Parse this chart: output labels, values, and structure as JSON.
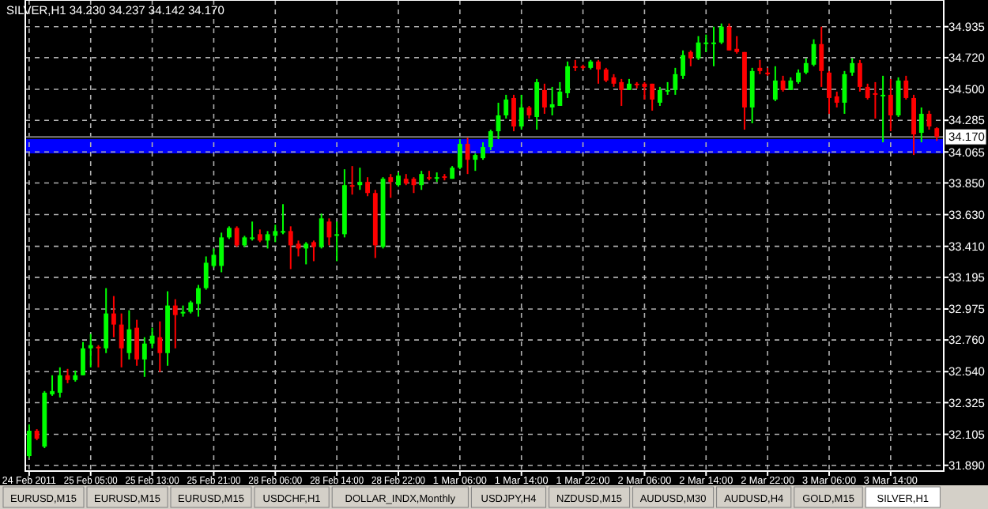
{
  "chart_data": {
    "type": "candlestick",
    "title": "SILVER,H1  34.230 34.237 34.142 34.170",
    "categories": [
      "24 Feb 2011",
      null,
      null,
      null,
      null,
      null,
      null,
      null,
      "25 Feb 05:00",
      null,
      null,
      null,
      null,
      null,
      null,
      null,
      "25 Feb 13:00",
      null,
      null,
      null,
      null,
      null,
      null,
      null,
      "25 Feb 21:00",
      null,
      null,
      null,
      null,
      null,
      null,
      null,
      "28 Feb 06:00",
      null,
      null,
      null,
      null,
      null,
      null,
      null,
      "28 Feb 14:00",
      null,
      null,
      null,
      null,
      null,
      null,
      null,
      "28 Feb 22:00",
      null,
      null,
      null,
      null,
      null,
      null,
      null,
      "1 Mar 06:00",
      null,
      null,
      null,
      null,
      null,
      null,
      null,
      "1 Mar 14:00",
      null,
      null,
      null,
      null,
      null,
      null,
      null,
      "1 Mar 22:00",
      null,
      null,
      null,
      null,
      null,
      null,
      null,
      "2 Mar 06:00",
      null,
      null,
      null,
      null,
      null,
      null,
      null,
      "2 Mar 14:00",
      null,
      null,
      null,
      null,
      null,
      null,
      null,
      "2 Mar 22:00",
      null,
      null,
      null,
      null,
      null,
      null,
      null,
      "3 Mar 06:00",
      null,
      null,
      null,
      null,
      null,
      null,
      null,
      "3 Mar 14:00",
      null,
      null,
      null,
      null,
      null,
      null
    ],
    "ohlc": [
      [
        31.954,
        32.174,
        31.943,
        32.13
      ],
      [
        32.13,
        32.141,
        32.064,
        32.075
      ],
      [
        32.02,
        32.405,
        32.009,
        32.394
      ],
      [
        32.383,
        32.515,
        32.372,
        32.405
      ],
      [
        32.394,
        32.57,
        32.361,
        32.515
      ],
      [
        32.515,
        32.559,
        32.46,
        32.482
      ],
      [
        32.482,
        32.548,
        32.471,
        32.515
      ],
      [
        32.515,
        32.746,
        32.515,
        32.702
      ],
      [
        32.702,
        32.801,
        32.57,
        32.724
      ],
      [
        32.713,
        32.724,
        32.57,
        32.702
      ],
      [
        32.702,
        33.12,
        32.669,
        32.944
      ],
      [
        32.944,
        33.065,
        32.779,
        32.867
      ],
      [
        32.867,
        32.944,
        32.57,
        32.702
      ],
      [
        32.669,
        32.966,
        32.625,
        32.834
      ],
      [
        32.845,
        32.9,
        32.581,
        32.625
      ],
      [
        32.625,
        32.779,
        32.504,
        32.735
      ],
      [
        32.735,
        32.845,
        32.702,
        32.79
      ],
      [
        32.779,
        32.889,
        32.537,
        32.669
      ],
      [
        32.669,
        33.098,
        32.581,
        32.999
      ],
      [
        32.999,
        33.043,
        32.702,
        32.933
      ],
      [
        32.944,
        32.999,
        32.922,
        32.955
      ],
      [
        32.955,
        33.032,
        32.944,
        33.021
      ],
      [
        33.01,
        33.142,
        32.922,
        33.12
      ],
      [
        33.12,
        33.34,
        33.109,
        33.296
      ],
      [
        33.274,
        33.395,
        33.263,
        33.351
      ],
      [
        33.274,
        33.505,
        33.23,
        33.472
      ],
      [
        33.472,
        33.549,
        33.461,
        33.538
      ],
      [
        33.538,
        33.549,
        33.406,
        33.417
      ],
      [
        33.417,
        33.483,
        33.406,
        33.472
      ],
      [
        33.467,
        33.582,
        33.45,
        33.472
      ],
      [
        33.494,
        33.527,
        33.439,
        33.45
      ],
      [
        33.45,
        33.516,
        33.395,
        33.494
      ],
      [
        33.483,
        33.56,
        33.439,
        33.516
      ],
      [
        33.505,
        33.703,
        33.494,
        33.516
      ],
      [
        33.516,
        33.549,
        33.252,
        33.417
      ],
      [
        33.428,
        33.45,
        33.34,
        33.395
      ],
      [
        33.395,
        33.439,
        33.285,
        33.428
      ],
      [
        33.439,
        33.45,
        33.307,
        33.406
      ],
      [
        33.406,
        33.637,
        33.395,
        33.604
      ],
      [
        33.582,
        33.604,
        33.417,
        33.472
      ],
      [
        33.483,
        33.582,
        33.307,
        33.494
      ],
      [
        33.494,
        33.945,
        33.472,
        33.835
      ],
      [
        33.835,
        33.967,
        33.769,
        33.824
      ],
      [
        33.835,
        33.956,
        33.802,
        33.857
      ],
      [
        33.857,
        33.89,
        33.758,
        33.78
      ],
      [
        33.78,
        33.802,
        33.329,
        33.417
      ],
      [
        33.406,
        33.89,
        33.395,
        33.879
      ],
      [
        33.89,
        33.912,
        33.747,
        33.857
      ],
      [
        33.835,
        33.923,
        33.824,
        33.901
      ],
      [
        33.879,
        33.912,
        33.835,
        33.846
      ],
      [
        33.879,
        33.89,
        33.78,
        33.835
      ],
      [
        33.835,
        33.934,
        33.802,
        33.912
      ],
      [
        33.89,
        33.934,
        33.868,
        33.879
      ],
      [
        33.885,
        33.923,
        33.857,
        33.89
      ],
      [
        33.896,
        33.912,
        33.868,
        33.89
      ],
      [
        33.879,
        33.967,
        33.879,
        33.956
      ],
      [
        33.956,
        34.154,
        33.945,
        34.121
      ],
      [
        34.121,
        34.165,
        33.912,
        34.011
      ],
      [
        34.011,
        34.055,
        33.934,
        34.044
      ],
      [
        34.022,
        34.132,
        34.011,
        34.099
      ],
      [
        34.099,
        34.22,
        34.077,
        34.209
      ],
      [
        34.209,
        34.407,
        34.154,
        34.319
      ],
      [
        34.319,
        34.462,
        34.297,
        34.429
      ],
      [
        34.44,
        34.462,
        34.209,
        34.242
      ],
      [
        34.242,
        34.462,
        34.22,
        34.374
      ],
      [
        34.374,
        34.385,
        34.297,
        34.319
      ],
      [
        34.308,
        34.572,
        34.22,
        34.55
      ],
      [
        34.495,
        34.539,
        34.33,
        34.374
      ],
      [
        34.374,
        34.517,
        34.319,
        34.396
      ],
      [
        34.385,
        34.55,
        34.385,
        34.484
      ],
      [
        34.473,
        34.693,
        34.44,
        34.66
      ],
      [
        34.66,
        34.704,
        34.627,
        34.649
      ],
      [
        34.66,
        34.671,
        34.638,
        34.649
      ],
      [
        34.649,
        34.704,
        34.638,
        34.693
      ],
      [
        34.693,
        34.704,
        34.539,
        34.638
      ],
      [
        34.638,
        34.649,
        34.55,
        34.561
      ],
      [
        34.583,
        34.605,
        34.517,
        34.539
      ],
      [
        34.55,
        34.572,
        34.385,
        34.495
      ],
      [
        34.495,
        34.572,
        34.495,
        34.539
      ],
      [
        34.539,
        34.55,
        34.506,
        34.528
      ],
      [
        34.539,
        34.55,
        34.429,
        34.517
      ],
      [
        34.539,
        34.539,
        34.352,
        34.429
      ],
      [
        34.407,
        34.517,
        34.385,
        34.495
      ],
      [
        34.484,
        34.55,
        34.462,
        34.495
      ],
      [
        34.495,
        34.649,
        34.462,
        34.605
      ],
      [
        34.594,
        34.77,
        34.572,
        34.737
      ],
      [
        34.759,
        34.77,
        34.66,
        34.715
      ],
      [
        34.715,
        34.869,
        34.704,
        34.825
      ],
      [
        34.819,
        34.88,
        34.759,
        34.825
      ],
      [
        34.814,
        34.935,
        34.66,
        34.825
      ],
      [
        34.825,
        34.957,
        34.814,
        34.935
      ],
      [
        34.935,
        34.957,
        34.77,
        34.77
      ],
      [
        34.781,
        34.869,
        34.748,
        34.759
      ],
      [
        34.759,
        34.759,
        34.22,
        34.374
      ],
      [
        34.374,
        34.649,
        34.264,
        34.627
      ],
      [
        34.649,
        34.704,
        34.605,
        34.627
      ],
      [
        34.616,
        34.649,
        34.594,
        34.605
      ],
      [
        34.429,
        34.66,
        34.418,
        34.561
      ],
      [
        34.561,
        34.594,
        34.484,
        34.495
      ],
      [
        34.495,
        34.583,
        34.495,
        34.561
      ],
      [
        34.55,
        34.638,
        34.539,
        34.616
      ],
      [
        34.616,
        34.715,
        34.605,
        34.682
      ],
      [
        34.671,
        34.847,
        34.66,
        34.814
      ],
      [
        34.814,
        34.935,
        34.517,
        34.627
      ],
      [
        34.616,
        34.627,
        34.33,
        34.44
      ],
      [
        34.451,
        34.484,
        34.374,
        34.407
      ],
      [
        34.407,
        34.627,
        34.33,
        34.605
      ],
      [
        34.616,
        34.715,
        34.594,
        34.682
      ],
      [
        34.682,
        34.704,
        34.484,
        34.517
      ],
      [
        34.517,
        34.539,
        34.429,
        34.44
      ],
      [
        34.473,
        34.55,
        34.297,
        34.462
      ],
      [
        34.451,
        34.594,
        34.132,
        34.462
      ],
      [
        34.462,
        34.572,
        34.209,
        34.319
      ],
      [
        34.319,
        34.583,
        34.308,
        34.561
      ],
      [
        34.561,
        34.594,
        34.429,
        34.44
      ],
      [
        34.44,
        34.462,
        34.044,
        34.187
      ],
      [
        34.198,
        34.374,
        34.132,
        34.33
      ],
      [
        34.33,
        34.352,
        34.22,
        34.242
      ],
      [
        34.23,
        34.237,
        34.142,
        34.17
      ]
    ],
    "ylim": [
      31.85,
      35.12
    ],
    "yticks": [
      {
        "value": 31.89,
        "label": "31.890"
      },
      32.105,
      32.325,
      {
        "value": 32.54,
        "label": "32.540"
      },
      {
        "value": 32.76,
        "label": "32.760"
      },
      32.975,
      33.195,
      {
        "value": 33.41,
        "label": "33.410"
      },
      {
        "value": 33.63,
        "label": "33.630"
      },
      {
        "value": 33.85,
        "label": "33.850"
      },
      34.065,
      34.285,
      {
        "value": 34.5,
        "label": "34.500"
      },
      {
        "value": 34.72,
        "label": "34.720"
      },
      34.935
    ],
    "grid": true,
    "ref_lines": [
      {
        "axis": "y",
        "value": 34.17,
        "label": "34.170",
        "color": "#808080"
      }
    ],
    "bands": [
      {
        "axis": "y",
        "from": 34.055,
        "to": 34.154,
        "color": "#0000ff"
      }
    ],
    "annotations": [
      "EURUSD,M15",
      "EURUSD,M15",
      "EURUSD,M15",
      "USDCHF,H1",
      "DOLLAR_INDX,Monthly",
      "USDJPY,H4",
      "NZDUSD,M15",
      "AUDUSD,M30",
      "AUDUSD,H4",
      "GOLD,M15",
      "SILVER,H1"
    ]
  }
}
